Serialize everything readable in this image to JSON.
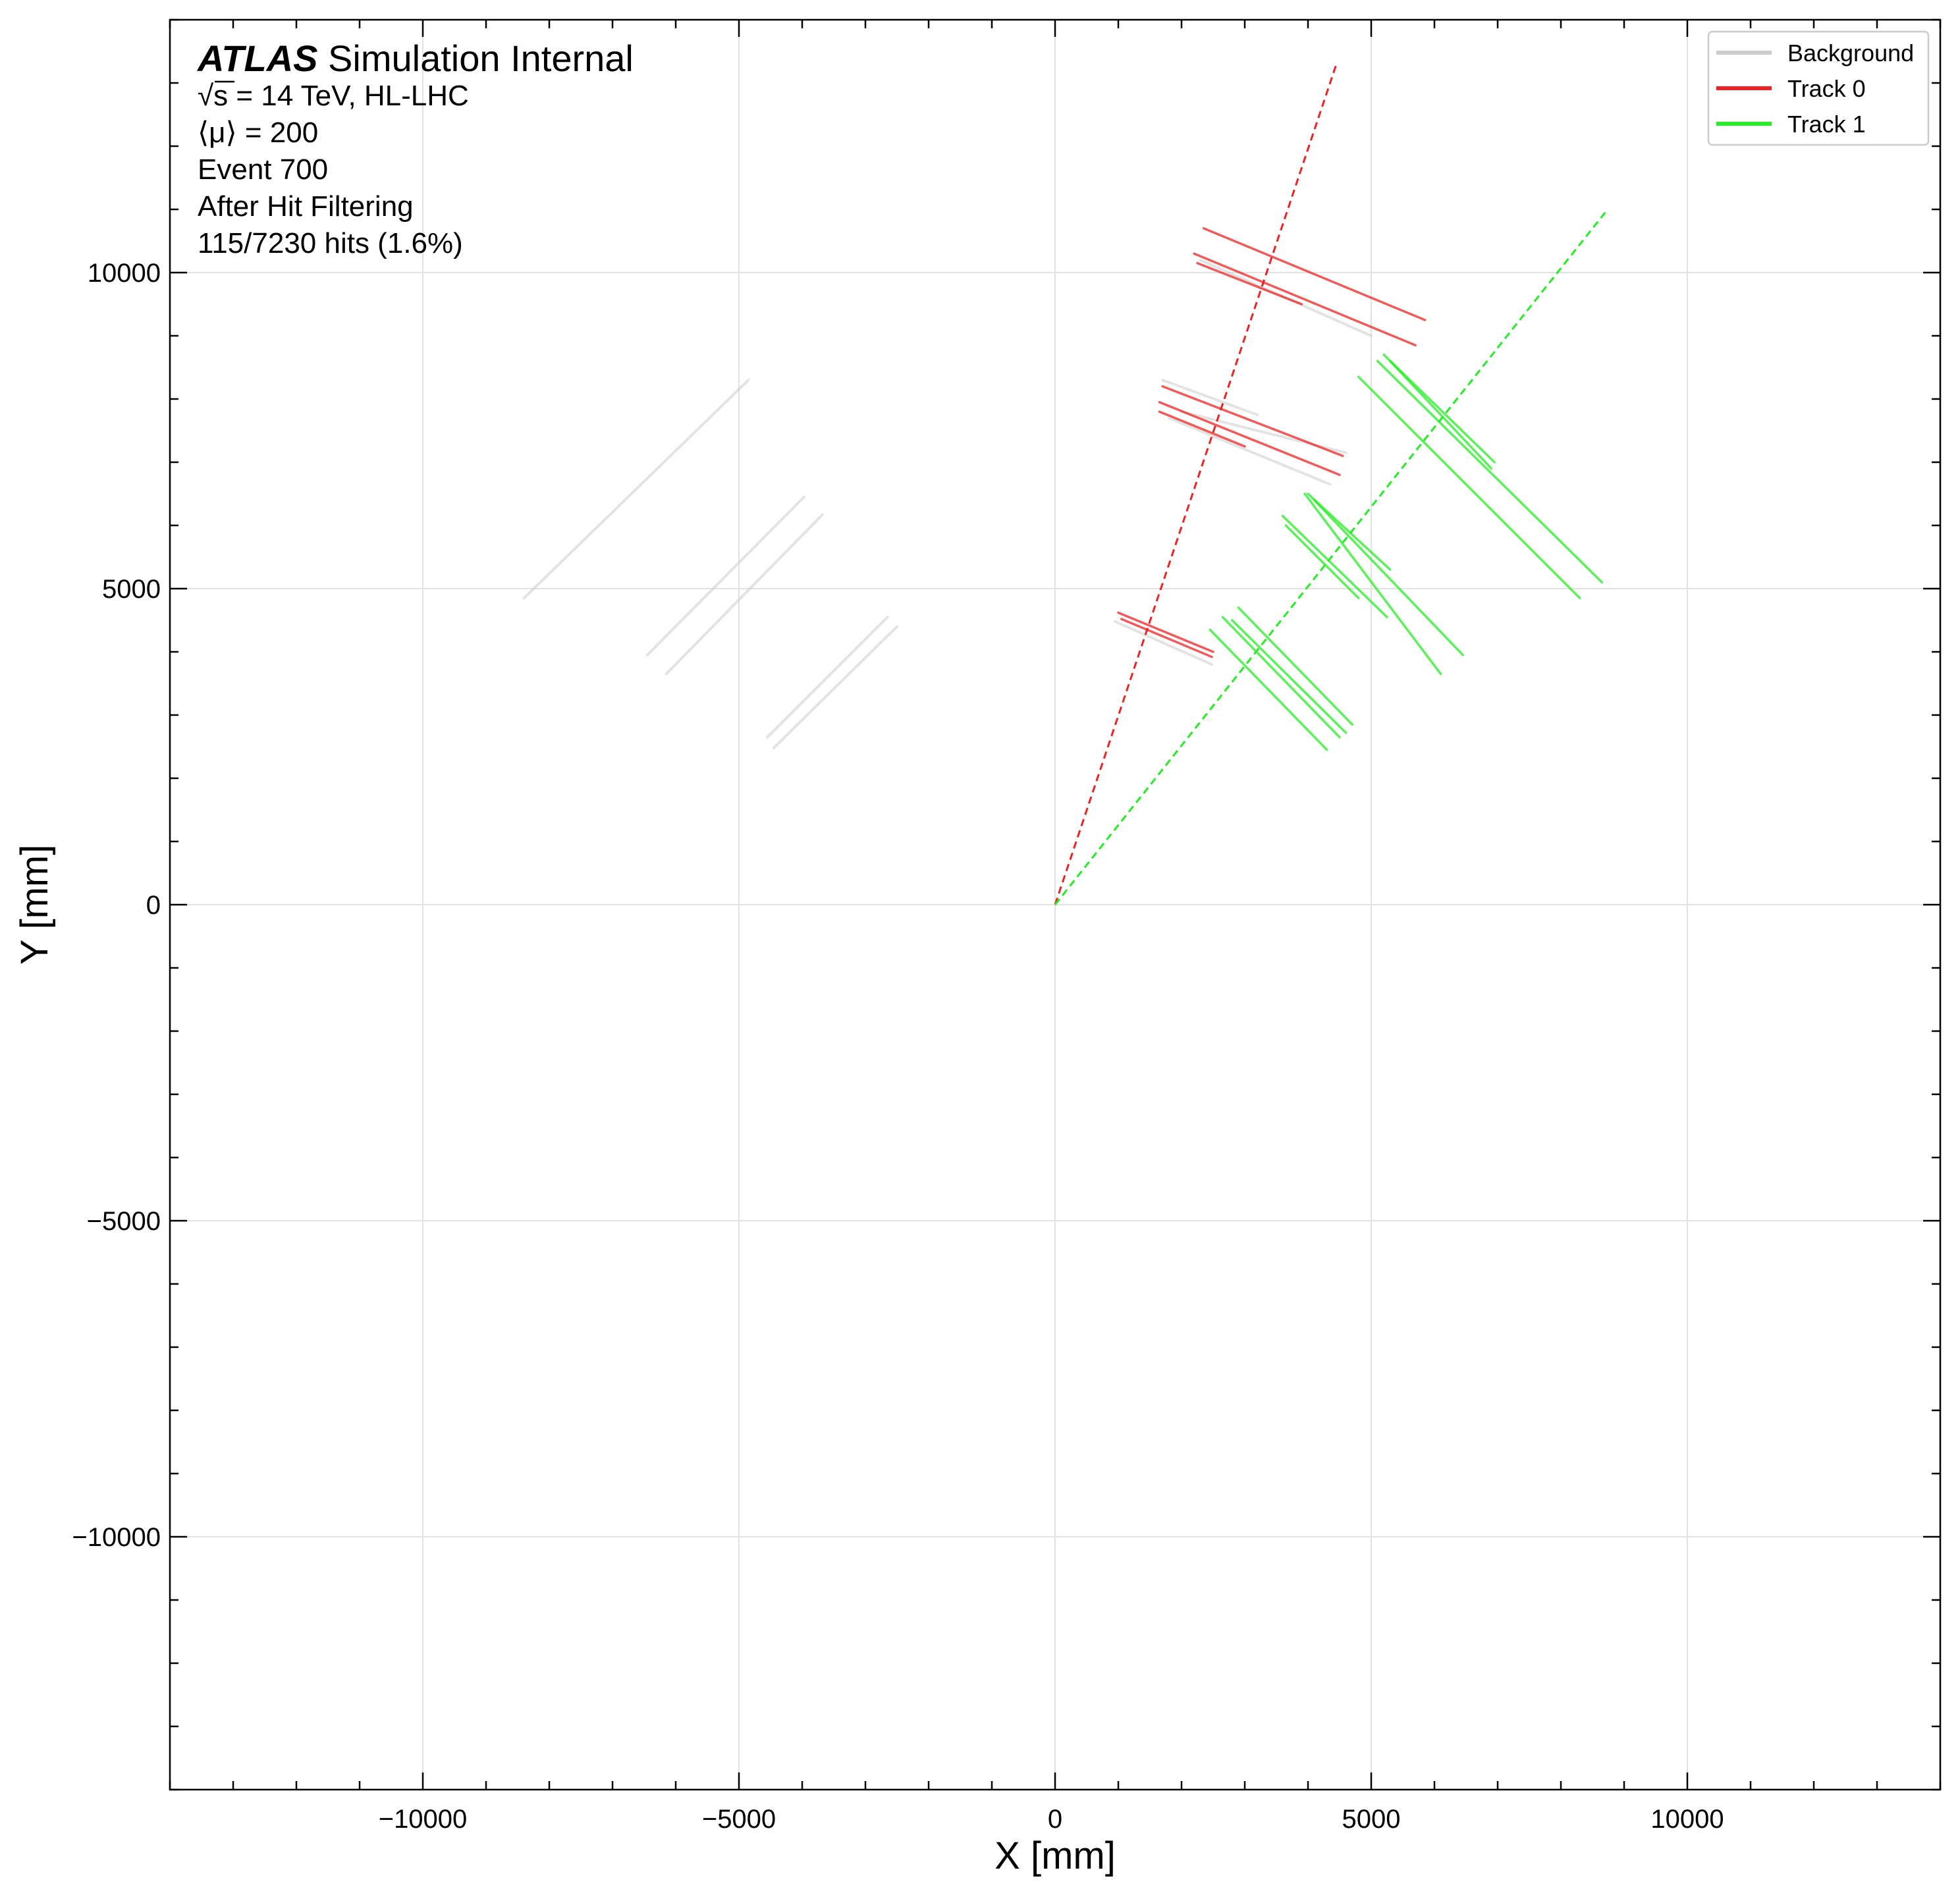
{
  "chart_data": {
    "type": "line",
    "xlabel": "X [mm]",
    "ylabel": "Y [mm]",
    "xlim": [
      -14000,
      14000
    ],
    "ylim": [
      -14000,
      14000
    ],
    "xticks": [
      -10000,
      -5000,
      0,
      5000,
      10000
    ],
    "yticks": [
      -10000,
      -5000,
      0,
      5000,
      10000
    ],
    "xtick_labels": [
      "−10000",
      "−5000",
      "0",
      "5000",
      "10000"
    ],
    "ytick_labels": [
      "−10000",
      "−5000",
      "0",
      "5000",
      "10000"
    ],
    "minor_step": 1000,
    "grid": true,
    "legend_position": "top-right",
    "annotation": {
      "brand": "ATLAS",
      "title_rest": " Simulation Internal",
      "energy": "√s = 14 TeV, HL-LHC",
      "pileup": "⟨μ⟩ = 200",
      "event": "Event 700",
      "stage": "After Hit Filtering",
      "hits": "115/7230 hits (1.6%)"
    },
    "series": [
      {
        "name": "Background",
        "color": "#cccccc",
        "segments": [
          [
            [
              -8400,
              4850
            ],
            [
              -4850,
              8300
            ]
          ],
          [
            [
              -6450,
              3950
            ],
            [
              -3970,
              6450
            ]
          ],
          [
            [
              -6150,
              3650
            ],
            [
              -3680,
              6170
            ]
          ],
          [
            [
              -4550,
              2650
            ],
            [
              -2650,
              4550
            ]
          ],
          [
            [
              -4450,
              2480
            ],
            [
              -2500,
              4400
            ]
          ],
          [
            [
              950,
              4480
            ],
            [
              2480,
              3800
            ]
          ],
          [
            [
              1700,
              8300
            ],
            [
              3200,
              7750
            ]
          ],
          [
            [
              2000,
              7800
            ],
            [
              4600,
              7150
            ]
          ],
          [
            [
              1800,
              7700
            ],
            [
              4350,
              6650
            ]
          ],
          [
            [
              2300,
              10200
            ],
            [
              5000,
              9000
            ]
          ]
        ]
      },
      {
        "name": "Track 0",
        "color": "#ee2222",
        "segments": [
          [
            [
              1000,
              4620
            ],
            [
              2500,
              4000
            ]
          ],
          [
            [
              1050,
              4520
            ],
            [
              2480,
              3920
            ]
          ],
          [
            [
              2350,
              10700
            ],
            [
              5850,
              9250
            ]
          ],
          [
            [
              2200,
              10300
            ],
            [
              5700,
              8850
            ]
          ],
          [
            [
              2250,
              10150
            ],
            [
              3900,
              9500
            ]
          ],
          [
            [
              1700,
              8200
            ],
            [
              4550,
              7100
            ]
          ],
          [
            [
              1650,
              7950
            ],
            [
              4500,
              6800
            ]
          ],
          [
            [
              1650,
              7800
            ],
            [
              3000,
              7250
            ]
          ]
        ],
        "trajectory": [
          [
            0,
            0
          ],
          [
            4450,
            13300
          ]
        ]
      },
      {
        "name": "Track 1",
        "color": "#22ee22",
        "segments": [
          [
            [
              2450,
              4350
            ],
            [
              4300,
              2450
            ]
          ],
          [
            [
              2650,
              4550
            ],
            [
              4500,
              2650
            ]
          ],
          [
            [
              2800,
              4500
            ],
            [
              4600,
              2720
            ]
          ],
          [
            [
              2900,
              4700
            ],
            [
              4700,
              2850
            ]
          ],
          [
            [
              3600,
              6150
            ],
            [
              5250,
              4550
            ]
          ],
          [
            [
              3650,
              6000
            ],
            [
              4800,
              4850
            ]
          ],
          [
            [
              3950,
              6500
            ],
            [
              6100,
              3650
            ]
          ],
          [
            [
              4100,
              6400
            ],
            [
              6450,
              3950
            ]
          ],
          [
            [
              4000,
              6500
            ],
            [
              5300,
              5300
            ]
          ],
          [
            [
              4800,
              8350
            ],
            [
              8300,
              4850
            ]
          ],
          [
            [
              5100,
              8600
            ],
            [
              8650,
              5100
            ]
          ],
          [
            [
              5200,
              8700
            ],
            [
              6950,
              7000
            ]
          ],
          [
            [
              5300,
              8600
            ],
            [
              6900,
              6900
            ]
          ]
        ],
        "trajectory": [
          [
            0,
            0
          ],
          [
            8700,
            10950
          ]
        ]
      }
    ]
  }
}
